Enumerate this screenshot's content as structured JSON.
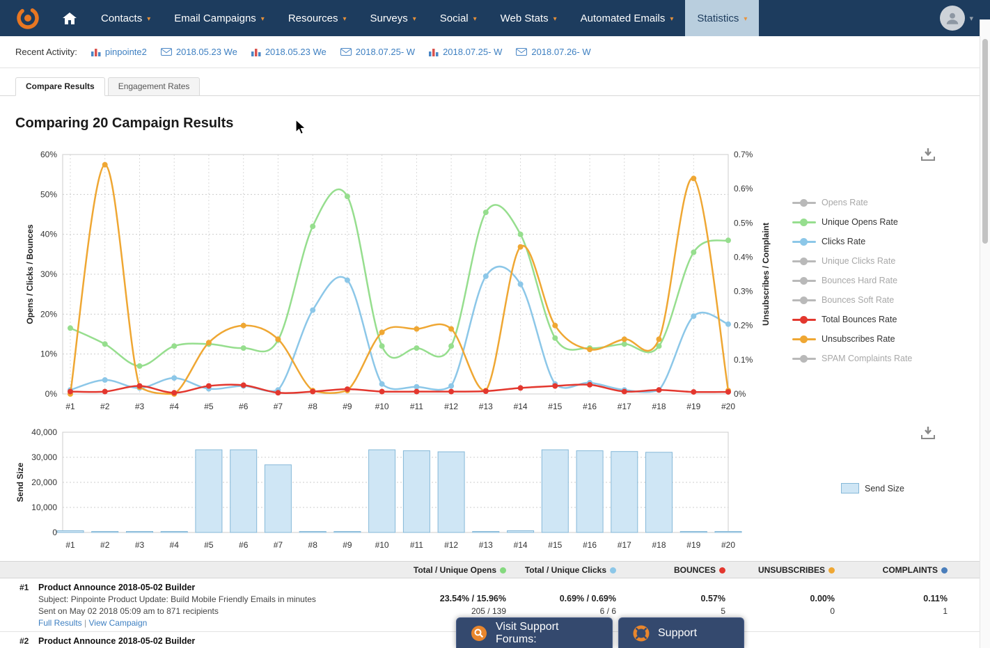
{
  "nav": {
    "items": [
      {
        "label": "Contacts",
        "active": false
      },
      {
        "label": "Email Campaigns",
        "active": false
      },
      {
        "label": "Resources",
        "active": false
      },
      {
        "label": "Surveys",
        "active": false
      },
      {
        "label": "Social",
        "active": false
      },
      {
        "label": "Web Stats",
        "active": false
      },
      {
        "label": "Automated Emails",
        "active": false
      },
      {
        "label": "Statistics",
        "active": true
      }
    ]
  },
  "recent_activity": {
    "label": "Recent Activity:",
    "items": [
      {
        "icon": "bar-chart-icon",
        "label": "pinpointe2"
      },
      {
        "icon": "envelope-icon",
        "label": "2018.05.23 We"
      },
      {
        "icon": "bar-chart-icon",
        "label": "2018.05.23 We"
      },
      {
        "icon": "envelope-icon",
        "label": "2018.07.25- W"
      },
      {
        "icon": "bar-chart-icon",
        "label": "2018.07.25- W"
      },
      {
        "icon": "envelope-icon",
        "label": "2018.07.26- W"
      }
    ]
  },
  "tabs": [
    {
      "label": "Compare Results",
      "active": true
    },
    {
      "label": "Engagement Rates",
      "active": false
    }
  ],
  "page_title": "Comparing 20 Campaign Results",
  "chart_data": [
    {
      "type": "line",
      "title": "",
      "categories": [
        "#1",
        "#2",
        "#3",
        "#4",
        "#5",
        "#6",
        "#7",
        "#8",
        "#9",
        "#10",
        "#11",
        "#12",
        "#13",
        "#14",
        "#15",
        "#16",
        "#17",
        "#18",
        "#19",
        "#20"
      ],
      "ylabel_left": "Opens / Clicks / Bounces",
      "ylabel_right": "Unsubscribes / Complaint",
      "ylim_left": [
        0,
        60
      ],
      "ylim_right": [
        0,
        0.7
      ],
      "yticks_left": [
        "0%",
        "10%",
        "20%",
        "30%",
        "40%",
        "50%",
        "60%"
      ],
      "yticks_right": [
        "0%",
        "0.1%",
        "0.2%",
        "0.3%",
        "0.4%",
        "0.5%",
        "0.6%",
        "0.7%"
      ],
      "grid": true,
      "legend_position": "right",
      "legend": [
        {
          "name": "Opens Rate",
          "color": "#b9b9b9",
          "enabled": false
        },
        {
          "name": "Unique Opens Rate",
          "color": "#96de8e",
          "enabled": true
        },
        {
          "name": "Clicks Rate",
          "color": "#8cc7e8",
          "enabled": true
        },
        {
          "name": "Unique Clicks Rate",
          "color": "#b9b9b9",
          "enabled": false
        },
        {
          "name": "Bounces Hard Rate",
          "color": "#b9b9b9",
          "enabled": false
        },
        {
          "name": "Bounces Soft Rate",
          "color": "#b9b9b9",
          "enabled": false
        },
        {
          "name": "Total Bounces Rate",
          "color": "#e3372e",
          "enabled": true
        },
        {
          "name": "Unsubscribes Rate",
          "color": "#efa733",
          "enabled": true
        },
        {
          "name": "SPAM Complaints Rate",
          "color": "#b9b9b9",
          "enabled": false
        }
      ],
      "series": [
        {
          "name": "Unique Opens Rate",
          "axis": "left",
          "color": "#96de8e",
          "values": [
            16.5,
            12.5,
            7,
            12,
            12.5,
            11.5,
            13.5,
            42,
            49.5,
            12,
            11.5,
            12,
            45.5,
            40,
            14,
            11.5,
            12.5,
            12,
            35.5,
            38.5
          ]
        },
        {
          "name": "Clicks Rate",
          "axis": "left",
          "color": "#8cc7e8",
          "values": [
            1,
            3.5,
            1.5,
            4,
            1.3,
            2,
            1,
            21,
            28.5,
            2.5,
            1.8,
            2,
            29.5,
            27.5,
            2.5,
            2.8,
            1,
            1,
            19.5,
            17.5
          ]
        },
        {
          "name": "Unsubscribes Rate",
          "axis": "right",
          "color": "#efa733",
          "values": [
            0.0,
            0.67,
            0.02,
            0.0,
            0.15,
            0.2,
            0.16,
            0.01,
            0.01,
            0.18,
            0.19,
            0.19,
            0.01,
            0.43,
            0.2,
            0.13,
            0.16,
            0.16,
            0.63,
            0.01
          ]
        },
        {
          "name": "Total Bounces Rate",
          "axis": "left",
          "color": "#e3372e",
          "values": [
            0.6,
            0.6,
            2,
            0.3,
            2,
            2.2,
            0.3,
            0.6,
            1.2,
            0.6,
            0.6,
            0.6,
            0.7,
            1.5,
            2,
            2.3,
            0.6,
            1,
            0.5,
            0.5
          ]
        }
      ]
    },
    {
      "type": "bar",
      "title": "",
      "categories": [
        "#1",
        "#2",
        "#3",
        "#4",
        "#5",
        "#6",
        "#7",
        "#8",
        "#9",
        "#10",
        "#11",
        "#12",
        "#13",
        "#14",
        "#15",
        "#16",
        "#17",
        "#18",
        "#19",
        "#20"
      ],
      "ylabel": "Send Size",
      "ylim": [
        0,
        40000
      ],
      "yticks": [
        "0",
        "10,000",
        "20,000",
        "30,000",
        "40,000"
      ],
      "grid": true,
      "bar_fill": "#cfe6f5",
      "bar_border": "#85b8d8",
      "legend": [
        {
          "name": "Send Size",
          "color": "#cfe6f5"
        }
      ],
      "values": [
        700,
        300,
        200,
        150,
        33000,
        33000,
        27000,
        250,
        250,
        33000,
        32600,
        32200,
        250,
        700,
        33000,
        32600,
        32300,
        32000,
        300,
        250
      ]
    }
  ],
  "table": {
    "headers": [
      {
        "label": "Total / Unique Opens",
        "dot_color": "#84d97e"
      },
      {
        "label": "Total / Unique Clicks",
        "dot_color": "#8cc7e8"
      },
      {
        "label": "BOUNCES",
        "dot_color": "#e3372e"
      },
      {
        "label": "UNSUBSCRIBES",
        "dot_color": "#efa733"
      },
      {
        "label": "COMPLAINTS",
        "dot_color": "#4a7ebb"
      }
    ],
    "rows": [
      {
        "num": "#1",
        "title": "Product Announce 2018-05-02 Builder",
        "subject": "Subject: Pinpointe Product Update: Build Mobile Friendly Emails in minutes",
        "sent": "Sent on May 02 2018 05:09 am to 871 recipients",
        "links": [
          "Full Results",
          "View Campaign"
        ],
        "cols": [
          {
            "pct": "23.54% / 15.96%",
            "count": "205 / 139"
          },
          {
            "pct": "0.69% / 0.69%",
            "count": "6 / 6"
          },
          {
            "pct": "0.57%",
            "count": "5"
          },
          {
            "pct": "0.00%",
            "count": "0"
          },
          {
            "pct": "0.11%",
            "count": "1"
          }
        ]
      },
      {
        "num": "#2",
        "title": "Product Announce 2018-05-02 Builder"
      }
    ]
  },
  "footer": {
    "forums_label": "Visit Support Forums:",
    "support_label": "Support"
  }
}
